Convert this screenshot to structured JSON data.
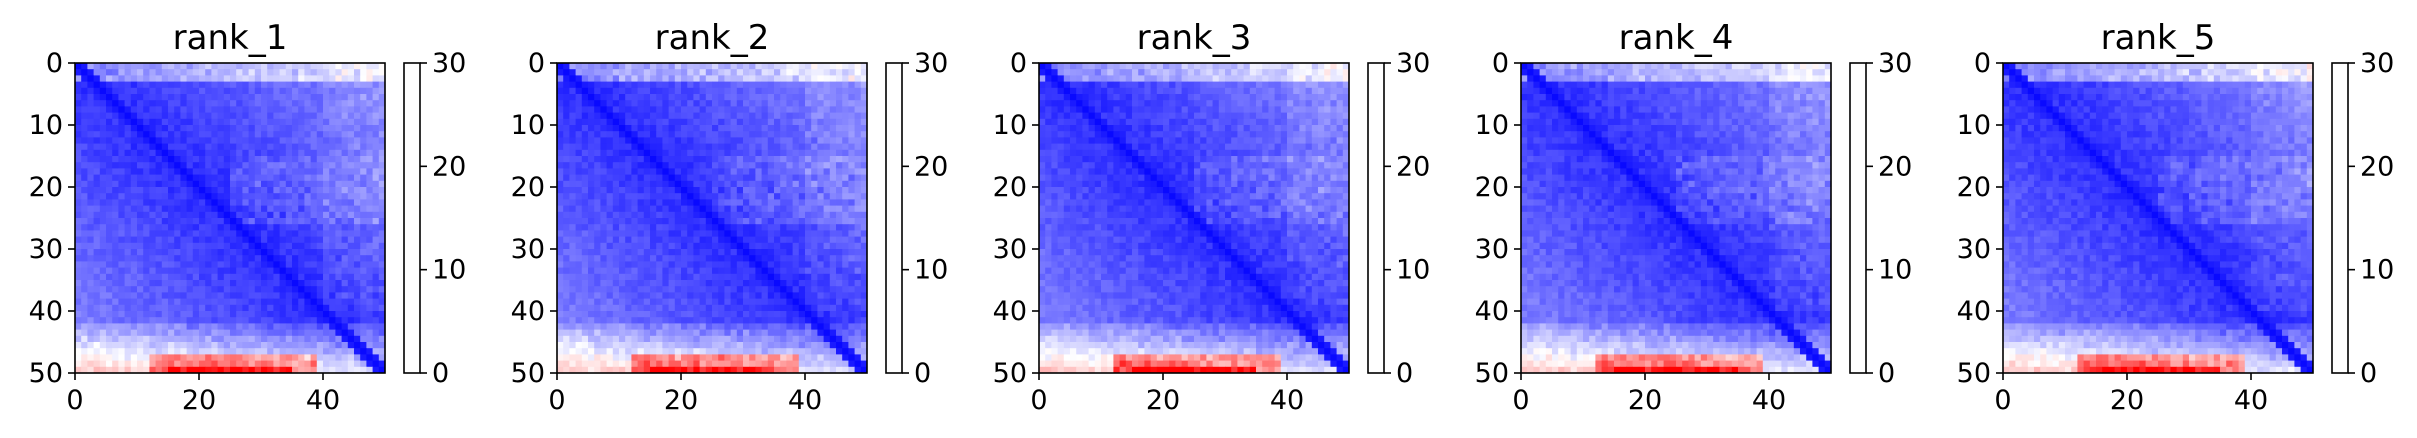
{
  "chart_data": [
    {
      "type": "heatmap",
      "title": "rank_1",
      "n": 50,
      "seed": 11,
      "x_ticks": [
        0,
        20,
        40
      ],
      "y_ticks": [
        0,
        10,
        20,
        30,
        40,
        50
      ],
      "xlim": [
        0,
        50
      ],
      "ylim": [
        50,
        0
      ],
      "colorbar": {
        "min": 0,
        "max": 30,
        "ticks": [
          0,
          10,
          20,
          30
        ],
        "colormap": "bwr"
      }
    },
    {
      "type": "heatmap",
      "title": "rank_2",
      "n": 50,
      "seed": 23,
      "x_ticks": [
        0,
        20,
        40
      ],
      "y_ticks": [
        0,
        10,
        20,
        30,
        40,
        50
      ],
      "xlim": [
        0,
        50
      ],
      "ylim": [
        50,
        0
      ],
      "colorbar": {
        "min": 0,
        "max": 30,
        "ticks": [
          0,
          10,
          20,
          30
        ],
        "colormap": "bwr"
      }
    },
    {
      "type": "heatmap",
      "title": "rank_3",
      "n": 50,
      "seed": 37,
      "x_ticks": [
        0,
        20,
        40
      ],
      "y_ticks": [
        0,
        10,
        20,
        30,
        40,
        50
      ],
      "xlim": [
        0,
        50
      ],
      "ylim": [
        50,
        0
      ],
      "colorbar": {
        "min": 0,
        "max": 30,
        "ticks": [
          0,
          10,
          20,
          30
        ],
        "colormap": "bwr"
      }
    },
    {
      "type": "heatmap",
      "title": "rank_4",
      "n": 50,
      "seed": 41,
      "x_ticks": [
        0,
        20,
        40
      ],
      "y_ticks": [
        0,
        10,
        20,
        30,
        40,
        50
      ],
      "xlim": [
        0,
        50
      ],
      "ylim": [
        50,
        0
      ],
      "colorbar": {
        "min": 0,
        "max": 30,
        "ticks": [
          0,
          10,
          20,
          30
        ],
        "colormap": "bwr"
      }
    },
    {
      "type": "heatmap",
      "title": "rank_5",
      "n": 50,
      "seed": 53,
      "x_ticks": [
        0,
        20,
        40
      ],
      "y_ticks": [
        0,
        10,
        20,
        30,
        40,
        50
      ],
      "xlim": [
        0,
        50
      ],
      "ylim": [
        50,
        0
      ],
      "colorbar": {
        "min": 0,
        "max": 30,
        "ticks": [
          0,
          10,
          20,
          30
        ],
        "colormap": "bwr"
      }
    }
  ],
  "colors": {
    "low": "#0000ff",
    "mid": "#ffffff",
    "high": "#ff0000"
  }
}
